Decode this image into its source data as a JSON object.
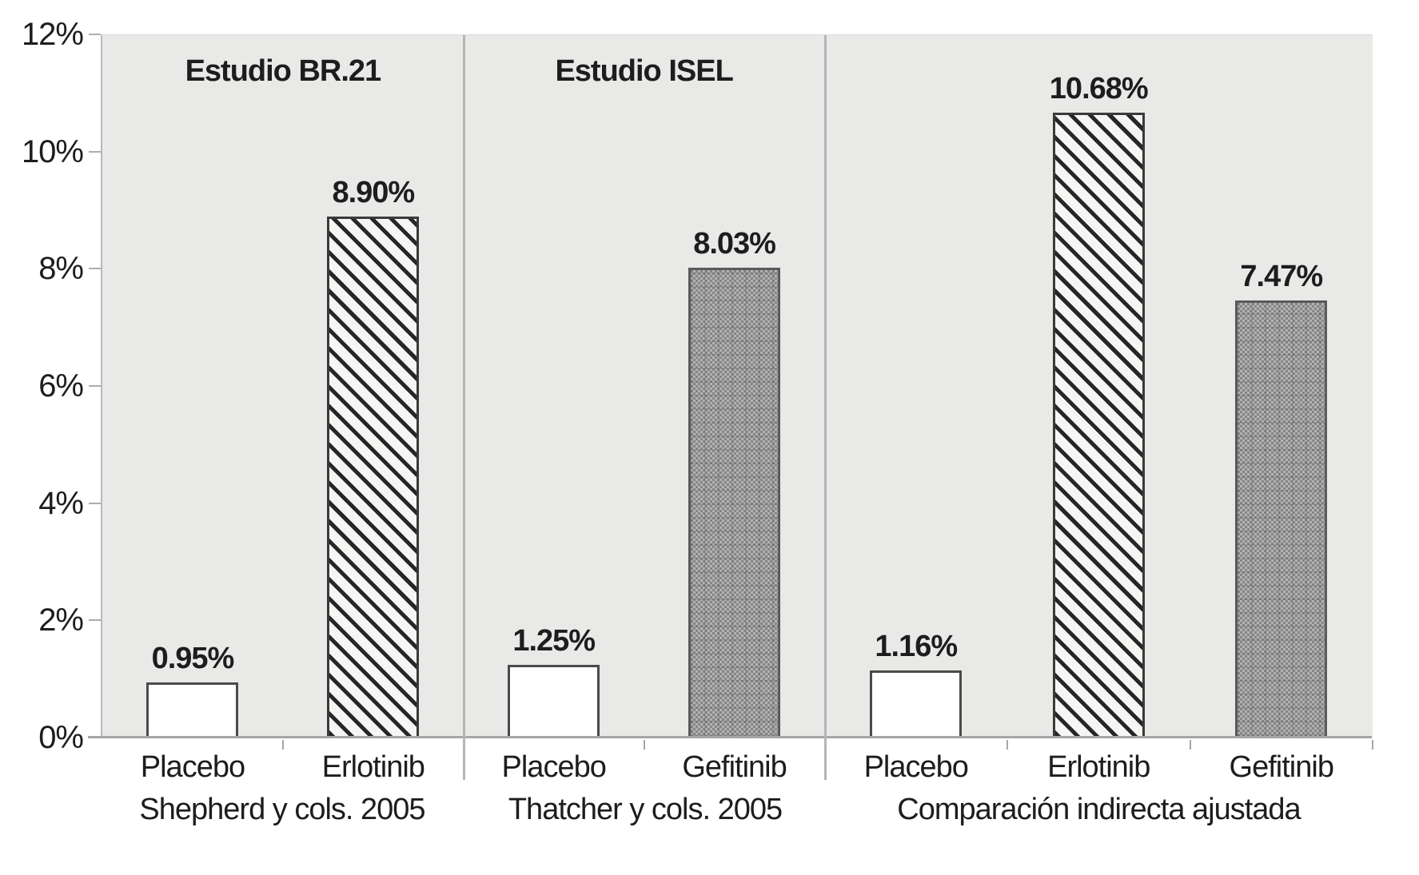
{
  "chart_data": {
    "type": "bar",
    "title": "",
    "xlabel": "",
    "ylabel": "",
    "ylim": [
      0,
      12
    ],
    "grid": false,
    "legend": "none",
    "ytick_labels": [
      "0%",
      "2%",
      "4%",
      "6%",
      "8%",
      "10%",
      "12%"
    ],
    "panels": [
      {
        "title": "Estudio BR.21",
        "group_label": "Shepherd y cols. 2005",
        "bars": [
          {
            "category": "Placebo",
            "value": 0.95,
            "value_label": "0.95%",
            "style": "white"
          },
          {
            "category": "Erlotinib",
            "value": 8.9,
            "value_label": "8.90%",
            "style": "hatch"
          }
        ]
      },
      {
        "title": "Estudio ISEL",
        "group_label": "Thatcher y cols. 2005",
        "bars": [
          {
            "category": "Placebo",
            "value": 1.25,
            "value_label": "1.25%",
            "style": "white"
          },
          {
            "category": "Gefitinib",
            "value": 8.03,
            "value_label": "8.03%",
            "style": "gray"
          }
        ]
      },
      {
        "title": "",
        "group_label": "Comparación indirecta ajustada",
        "bars": [
          {
            "category": "Placebo",
            "value": 1.16,
            "value_label": "1.16%",
            "style": "white"
          },
          {
            "category": "Erlotinib",
            "value": 10.68,
            "value_label": "10.68%",
            "style": "hatch"
          },
          {
            "category": "Gefitinib",
            "value": 7.47,
            "value_label": "7.47%",
            "style": "gray"
          }
        ]
      }
    ],
    "bar_styles": {
      "white": {
        "fill": "#ffffff",
        "pattern": "solid",
        "border": "#4a4a4a"
      },
      "hatch": {
        "fill": "#f5f5f3",
        "pattern": "diagonal-stripes",
        "stripe_color": "#262626",
        "border": "#3a3a3a"
      },
      "gray": {
        "fill": "#9c9c9c",
        "pattern": "checker",
        "border": "#5a5a5a"
      }
    },
    "colors": {
      "plot_bg": "#e9e9e8",
      "page_bg": "#ffffff",
      "axis": "#a6a6a6",
      "panel_divider": "#b5b5b5",
      "text": "#1d1d1d"
    }
  }
}
